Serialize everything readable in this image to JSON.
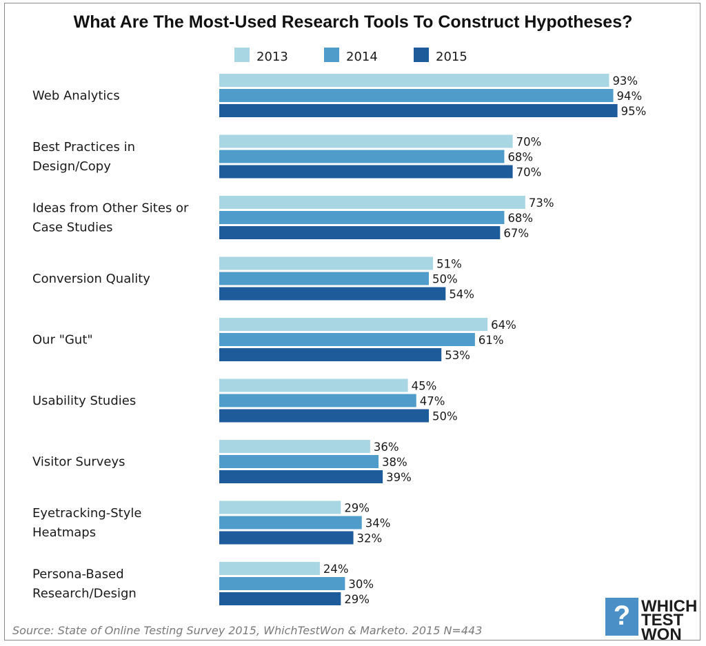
{
  "chart_data": {
    "type": "bar",
    "orientation": "horizontal",
    "title": "What Are The Most-Used Research Tools To Construct Hypotheses?",
    "categories": [
      [
        "Web Analytics"
      ],
      [
        "Best Practices in",
        "Design/Copy"
      ],
      [
        "Ideas from Other Sites or",
        "Case Studies"
      ],
      [
        "Conversion Quality"
      ],
      [
        "Our \"Gut\""
      ],
      [
        "Usability Studies"
      ],
      [
        "Visitor Surveys"
      ],
      [
        "Eyetracking-Style",
        "Heatmaps"
      ],
      [
        "Persona-Based",
        "Research/Design"
      ]
    ],
    "series": [
      {
        "name": "2013",
        "color": "#a9d6e3",
        "values": [
          93,
          70,
          73,
          51,
          64,
          45,
          36,
          29,
          24
        ]
      },
      {
        "name": "2014",
        "color": "#4f9ccb",
        "values": [
          94,
          68,
          68,
          50,
          61,
          47,
          38,
          34,
          30
        ]
      },
      {
        "name": "2015",
        "color": "#1e5b9a",
        "values": [
          95,
          70,
          67,
          54,
          53,
          50,
          39,
          32,
          29
        ]
      }
    ],
    "value_suffix": "%",
    "xlim": [
      0,
      100
    ],
    "grid": false,
    "legend": "top-center"
  },
  "source_text": "Source: State of Online Testing Survey 2015, WhichTestWon & Marketo.   2015 N=443",
  "logo": {
    "lines": [
      "WHICH",
      "TEST",
      "WON"
    ],
    "color": "#4a90c7"
  }
}
